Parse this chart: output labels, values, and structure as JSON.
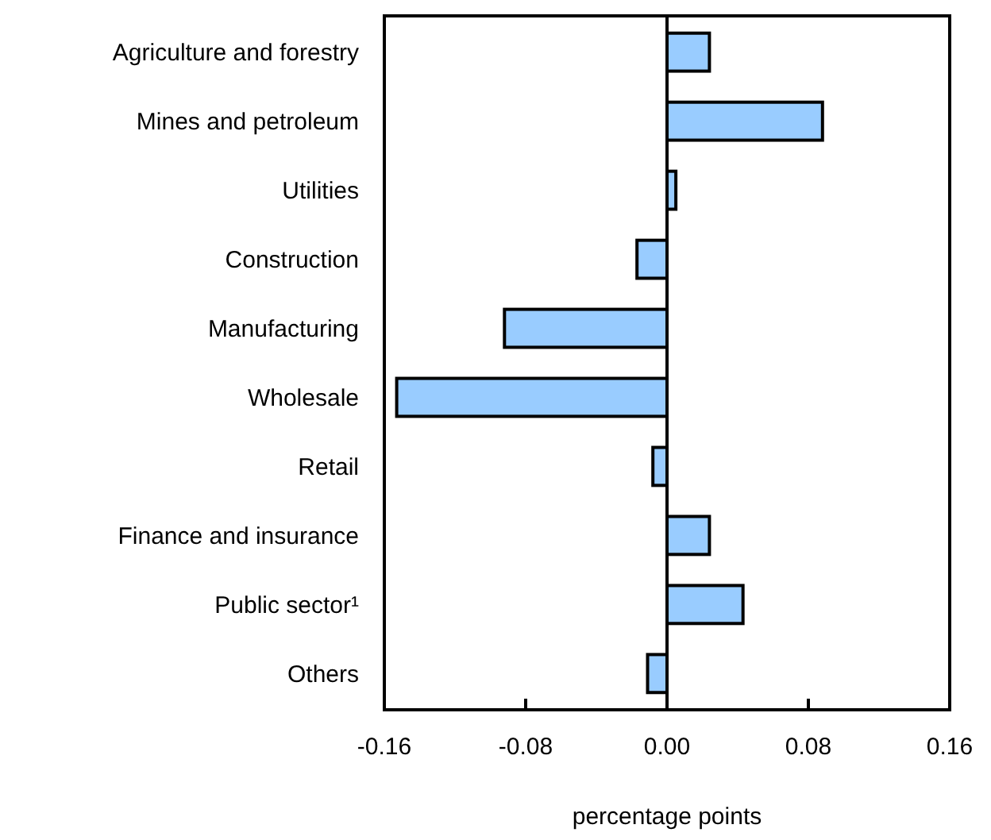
{
  "chart_data": {
    "type": "bar",
    "orientation": "horizontal",
    "xlabel": "percentage points",
    "categories": [
      "Agriculture and forestry",
      "Mines and petroleum",
      "Utilities",
      "Construction",
      "Manufacturing",
      "Wholesale",
      "Retail",
      "Finance and insurance",
      "Public sector¹",
      "Others"
    ],
    "values": [
      0.024,
      0.088,
      0.005,
      -0.017,
      -0.092,
      -0.153,
      -0.008,
      0.024,
      0.043,
      -0.011
    ],
    "color": "#99ccff",
    "xlim": [
      -0.16,
      0.16
    ],
    "xticks": [
      {
        "value": -0.16,
        "label": "-0.16"
      },
      {
        "value": -0.08,
        "label": "-0.08"
      },
      {
        "value": 0,
        "label": "0.00"
      },
      {
        "value": 0.08,
        "label": "0.08"
      },
      {
        "value": 0.16,
        "label": "0.16"
      }
    ]
  }
}
